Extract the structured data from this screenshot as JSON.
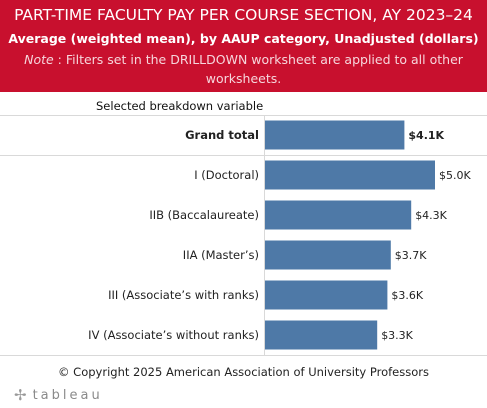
{
  "header": {
    "title": "PART-TIME FACULTY PAY PER COURSE SECTION, AY 2023–24",
    "subtitle": "Average (weighted mean), by AAUP category, Unadjusted (dollars)",
    "note_label": "Note",
    "note_text": " : Filters set in the DRILLDOWN worksheet are applied to all other worksheets."
  },
  "column_header": "Selected breakdown variable",
  "footer": {
    "copyright": "© Copyright 2025 American Association of University Professors",
    "logo_text": "tableau"
  },
  "colors": {
    "header_bg": "#c8102e",
    "bar": "#4e79a7"
  },
  "chart_data": {
    "type": "bar",
    "orientation": "horizontal",
    "categories": [
      "Grand total",
      "I (Doctoral)",
      "IIB (Baccalaureate)",
      "IIA (Master’s)",
      "III (Associate’s with ranks)",
      "IV (Associate’s without ranks)"
    ],
    "values": [
      4.1,
      5.0,
      4.3,
      3.7,
      3.6,
      3.3
    ],
    "value_labels": [
      "$4.1K",
      "$5.0K",
      "$4.3K",
      "$3.7K",
      "$3.6K",
      "$3.3K"
    ],
    "unit": "thousand dollars",
    "xlim": [
      0,
      5.0
    ]
  }
}
